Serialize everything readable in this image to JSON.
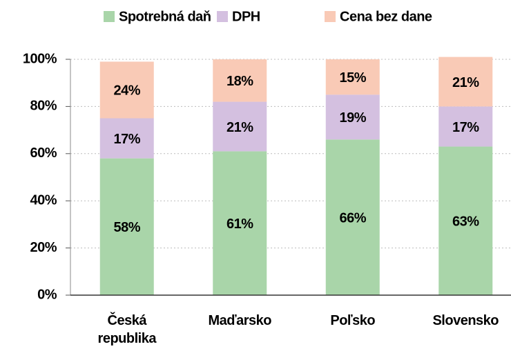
{
  "chart_data": {
    "type": "stacked_bar",
    "categories": [
      "Česká republika",
      "Maďarsko",
      "Poľsko",
      "Slovensko"
    ],
    "series": [
      {
        "name": "Spotrebná daň",
        "color": "#a9d5a9",
        "values": [
          58,
          61,
          66,
          63
        ],
        "value_labels": [
          "58%",
          "61%",
          "66%",
          "63%"
        ]
      },
      {
        "name": "DPH",
        "color": "#d4c0e0",
        "values": [
          17,
          21,
          19,
          17
        ],
        "value_labels": [
          "17%",
          "21%",
          "19%",
          "17%"
        ]
      },
      {
        "name": "Cena bez dane",
        "color": "#f9cab6",
        "values": [
          24,
          18,
          15,
          21
        ],
        "value_labels": [
          "24%",
          "18%",
          "15%",
          "21%"
        ]
      }
    ],
    "ylim": [
      0,
      100
    ],
    "yticks": [
      {
        "value": 0,
        "label": "0%"
      },
      {
        "value": 20,
        "label": "20%"
      },
      {
        "value": 40,
        "label": "40%"
      },
      {
        "value": 60,
        "label": "60%"
      },
      {
        "value": 80,
        "label": "80%"
      },
      {
        "value": 100,
        "label": "100%"
      }
    ],
    "grid": true,
    "legend": "top"
  }
}
